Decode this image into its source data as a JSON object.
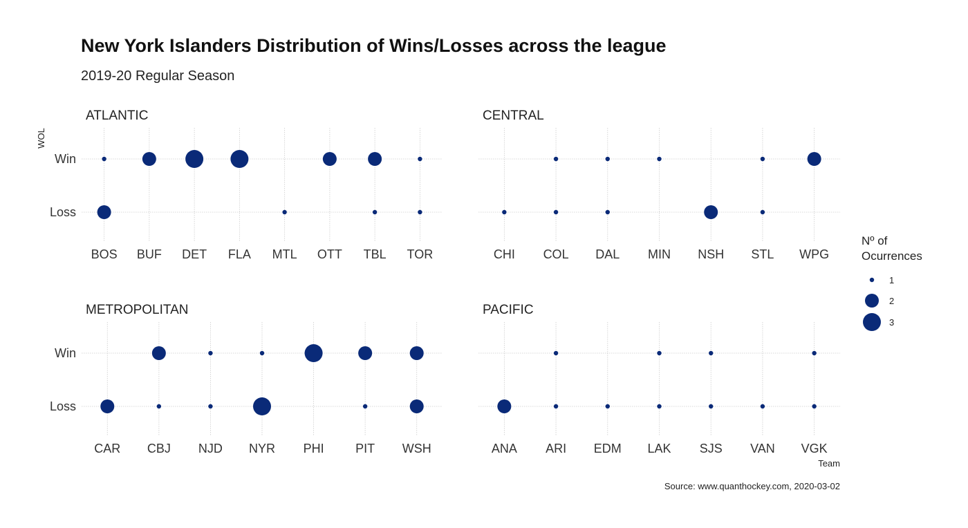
{
  "chart_data": {
    "type": "scatter",
    "title": "New York Islanders Distribution of Wins/Losses across the league",
    "subtitle": "2019-20 Regular Season",
    "xlabel": "Team",
    "ylabel": "WOL",
    "y_categories": [
      "Loss",
      "Win"
    ],
    "point_color": "#0a2a78",
    "grid": true,
    "legend": {
      "title": [
        "Nº of",
        "Ocurrences"
      ],
      "position": "right",
      "values": [
        1,
        2,
        3
      ]
    },
    "caption": "Source: www.quanthockey.com, 2020-03-02",
    "facets": [
      {
        "name": "ATLANTIC",
        "teams": [
          "BOS",
          "BUF",
          "DET",
          "FLA",
          "MTL",
          "OTT",
          "TBL",
          "TOR"
        ],
        "points": [
          {
            "team": "BOS",
            "result": "Win",
            "count": 1
          },
          {
            "team": "BOS",
            "result": "Loss",
            "count": 2
          },
          {
            "team": "BUF",
            "result": "Win",
            "count": 2
          },
          {
            "team": "DET",
            "result": "Win",
            "count": 3
          },
          {
            "team": "FLA",
            "result": "Win",
            "count": 3
          },
          {
            "team": "MTL",
            "result": "Loss",
            "count": 1
          },
          {
            "team": "OTT",
            "result": "Win",
            "count": 2
          },
          {
            "team": "TBL",
            "result": "Win",
            "count": 2
          },
          {
            "team": "TBL",
            "result": "Loss",
            "count": 1
          },
          {
            "team": "TOR",
            "result": "Win",
            "count": 1
          },
          {
            "team": "TOR",
            "result": "Loss",
            "count": 1
          }
        ]
      },
      {
        "name": "CENTRAL",
        "teams": [
          "CHI",
          "COL",
          "DAL",
          "MIN",
          "NSH",
          "STL",
          "WPG"
        ],
        "points": [
          {
            "team": "CHI",
            "result": "Loss",
            "count": 1
          },
          {
            "team": "COL",
            "result": "Win",
            "count": 1
          },
          {
            "team": "COL",
            "result": "Loss",
            "count": 1
          },
          {
            "team": "DAL",
            "result": "Win",
            "count": 1
          },
          {
            "team": "DAL",
            "result": "Loss",
            "count": 1
          },
          {
            "team": "MIN",
            "result": "Win",
            "count": 1
          },
          {
            "team": "NSH",
            "result": "Loss",
            "count": 2
          },
          {
            "team": "STL",
            "result": "Win",
            "count": 1
          },
          {
            "team": "STL",
            "result": "Loss",
            "count": 1
          },
          {
            "team": "WPG",
            "result": "Win",
            "count": 2
          }
        ]
      },
      {
        "name": "METROPOLITAN",
        "teams": [
          "CAR",
          "CBJ",
          "NJD",
          "NYR",
          "PHI",
          "PIT",
          "WSH"
        ],
        "points": [
          {
            "team": "CAR",
            "result": "Loss",
            "count": 2
          },
          {
            "team": "CBJ",
            "result": "Win",
            "count": 2
          },
          {
            "team": "CBJ",
            "result": "Loss",
            "count": 1
          },
          {
            "team": "NJD",
            "result": "Win",
            "count": 1
          },
          {
            "team": "NJD",
            "result": "Loss",
            "count": 1
          },
          {
            "team": "NYR",
            "result": "Win",
            "count": 1
          },
          {
            "team": "NYR",
            "result": "Loss",
            "count": 3
          },
          {
            "team": "PHI",
            "result": "Win",
            "count": 3
          },
          {
            "team": "PIT",
            "result": "Win",
            "count": 2
          },
          {
            "team": "PIT",
            "result": "Loss",
            "count": 1
          },
          {
            "team": "WSH",
            "result": "Win",
            "count": 2
          },
          {
            "team": "WSH",
            "result": "Loss",
            "count": 2
          }
        ]
      },
      {
        "name": "PACIFIC",
        "teams": [
          "ANA",
          "ARI",
          "EDM",
          "LAK",
          "SJS",
          "VAN",
          "VGK"
        ],
        "points": [
          {
            "team": "ANA",
            "result": "Loss",
            "count": 2
          },
          {
            "team": "ARI",
            "result": "Win",
            "count": 1
          },
          {
            "team": "ARI",
            "result": "Loss",
            "count": 1
          },
          {
            "team": "EDM",
            "result": "Loss",
            "count": 1
          },
          {
            "team": "LAK",
            "result": "Win",
            "count": 1
          },
          {
            "team": "LAK",
            "result": "Loss",
            "count": 1
          },
          {
            "team": "SJS",
            "result": "Win",
            "count": 1
          },
          {
            "team": "SJS",
            "result": "Loss",
            "count": 1
          },
          {
            "team": "VAN",
            "result": "Loss",
            "count": 1
          },
          {
            "team": "VGK",
            "result": "Win",
            "count": 1
          },
          {
            "team": "VGK",
            "result": "Loss",
            "count": 1
          }
        ]
      }
    ]
  }
}
